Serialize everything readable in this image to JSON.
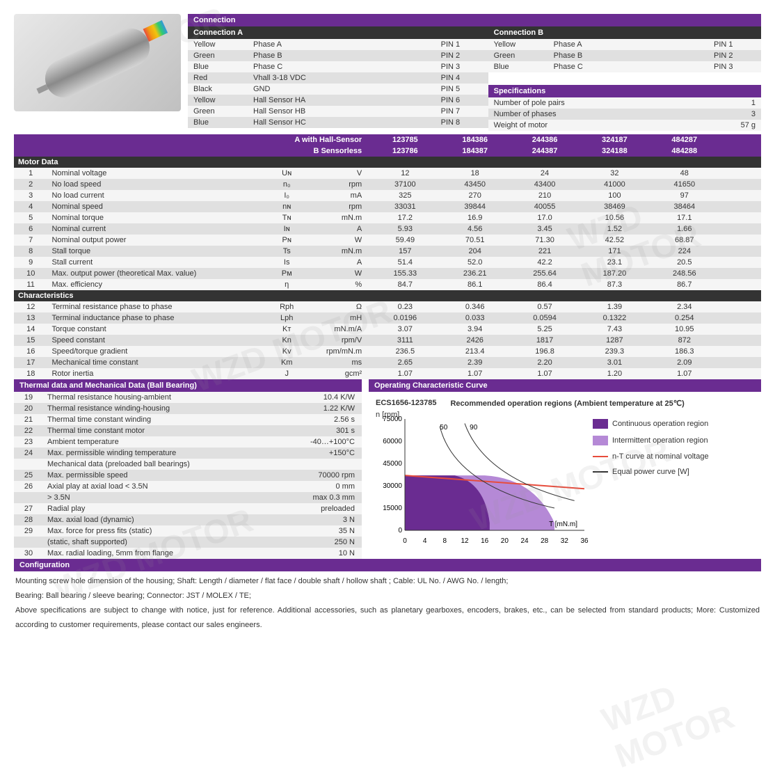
{
  "connection": {
    "title": "Connection",
    "a": {
      "title": "Connection A",
      "rows": [
        {
          "wire": "Yellow",
          "sig": "Phase A",
          "pin": "PIN 1"
        },
        {
          "wire": "Green",
          "sig": "Phase B",
          "pin": "PIN 2"
        },
        {
          "wire": "Blue",
          "sig": "Phase C",
          "pin": "PIN 3"
        },
        {
          "wire": "Red",
          "sig": "Vhall 3-18 VDC",
          "pin": "PIN 4"
        },
        {
          "wire": "Black",
          "sig": "GND",
          "pin": "PIN 5"
        },
        {
          "wire": "Yellow",
          "sig": "Hall Sensor HA",
          "pin": "PIN 6"
        },
        {
          "wire": "Green",
          "sig": "Hall Sensor HB",
          "pin": "PIN 7"
        },
        {
          "wire": "Blue",
          "sig": "Hall Sensor HC",
          "pin": "PIN 8"
        }
      ]
    },
    "b": {
      "title": "Connection B",
      "rows": [
        {
          "wire": "Yellow",
          "sig": "Phase A",
          "pin": "PIN 1"
        },
        {
          "wire": "Green",
          "sig": "Phase B",
          "pin": "PIN 2"
        },
        {
          "wire": "Blue",
          "sig": "Phase C",
          "pin": "PIN 3"
        }
      ]
    }
  },
  "specifications": {
    "title": "Specifications",
    "rows": [
      {
        "label": "Number of pole pairs",
        "val": "1"
      },
      {
        "label": "Number of phases",
        "val": "3"
      },
      {
        "label": "Weight of motor",
        "val": "57 g"
      }
    ]
  },
  "motorHeader": {
    "rowA": "A with Hall-Sensor",
    "rowB": "B Sensorless",
    "colsA": [
      "123785",
      "184386",
      "244386",
      "324187",
      "484287"
    ],
    "colsB": [
      "123786",
      "184387",
      "244387",
      "324188",
      "484288"
    ]
  },
  "motorData": {
    "title": "Motor Data",
    "rows": [
      {
        "n": "1",
        "label": "Nominal voltage",
        "sym": "Uɴ",
        "unit": "V",
        "v": [
          "12",
          "18",
          "24",
          "32",
          "48"
        ]
      },
      {
        "n": "2",
        "label": "No load speed",
        "sym": "n₀",
        "unit": "rpm",
        "v": [
          "37100",
          "43450",
          "43400",
          "41000",
          "41650"
        ]
      },
      {
        "n": "3",
        "label": "No load current",
        "sym": "I₀",
        "unit": "mA",
        "v": [
          "325",
          "270",
          "210",
          "100",
          "97"
        ]
      },
      {
        "n": "4",
        "label": "Nominal speed",
        "sym": "nɴ",
        "unit": "rpm",
        "v": [
          "33031",
          "39844",
          "40055",
          "38469",
          "38464"
        ]
      },
      {
        "n": "5",
        "label": "Nominal torque",
        "sym": "Tɴ",
        "unit": "mN.m",
        "v": [
          "17.2",
          "16.9",
          "17.0",
          "10.56",
          "17.1"
        ]
      },
      {
        "n": "6",
        "label": "Nominal current",
        "sym": "Iɴ",
        "unit": "A",
        "v": [
          "5.93",
          "4.56",
          "3.45",
          "1.52",
          "1.66"
        ]
      },
      {
        "n": "7",
        "label": "Nominal output power",
        "sym": "Pɴ",
        "unit": "W",
        "v": [
          "59.49",
          "70.51",
          "71.30",
          "42.52",
          "68.87"
        ]
      },
      {
        "n": "8",
        "label": "Stall torque",
        "sym": "Ts",
        "unit": "mN.m",
        "v": [
          "157",
          "204",
          "221",
          "171",
          "224"
        ]
      },
      {
        "n": "9",
        "label": "Stall current",
        "sym": "Is",
        "unit": "A",
        "v": [
          "51.4",
          "52.0",
          "42.2",
          "23.1",
          "20.5"
        ]
      },
      {
        "n": "10",
        "label": "Max. output power (theoretical Max. value)",
        "sym": "Pᴍ",
        "unit": "W",
        "v": [
          "155.33",
          "236.21",
          "255.64",
          "187.20",
          "248.56"
        ]
      },
      {
        "n": "11",
        "label": "Max. efficiency",
        "sym": "η",
        "unit": "%",
        "v": [
          "84.7",
          "86.1",
          "86.4",
          "87.3",
          "86.7"
        ]
      }
    ]
  },
  "characteristics": {
    "title": "Characteristics",
    "rows": [
      {
        "n": "12",
        "label": "Terminal resistance phase to phase",
        "sym": "Rph",
        "unit": "Ω",
        "v": [
          "0.23",
          "0.346",
          "0.57",
          "1.39",
          "2.34"
        ]
      },
      {
        "n": "13",
        "label": "Terminal inductance phase to phase",
        "sym": "Lph",
        "unit": "mH",
        "v": [
          "0.0196",
          "0.033",
          "0.0594",
          "0.1322",
          "0.254"
        ]
      },
      {
        "n": "14",
        "label": "Torque constant",
        "sym": "Kᴛ",
        "unit": "mN.m/A",
        "v": [
          "3.07",
          "3.94",
          "5.25",
          "7.43",
          "10.95"
        ]
      },
      {
        "n": "15",
        "label": "Speed constant",
        "sym": "Kn",
        "unit": "rpm/V",
        "v": [
          "3111",
          "2426",
          "1817",
          "1287",
          "872"
        ]
      },
      {
        "n": "16",
        "label": "Speed/torque gradient",
        "sym": "Kv",
        "unit": "rpm/mN.m",
        "v": [
          "236.5",
          "213.4",
          "196.8",
          "239.3",
          "186.3"
        ]
      },
      {
        "n": "17",
        "label": "Mechanical time constant",
        "sym": "Km",
        "unit": "ms",
        "v": [
          "2.65",
          "2.39",
          "2.20",
          "3.01",
          "2.09"
        ]
      },
      {
        "n": "18",
        "label": "Rotor inertia",
        "sym": "J",
        "unit": "gcm²",
        "v": [
          "1.07",
          "1.07",
          "1.07",
          "1.20",
          "1.07"
        ]
      }
    ]
  },
  "thermal": {
    "title": "Thermal data and Mechanical Data (Ball Bearing)",
    "rows": [
      {
        "n": "19",
        "label": "Thermal resistance housing-ambient",
        "val": "10.4 K/W"
      },
      {
        "n": "20",
        "label": "Thermal resistance winding-housing",
        "val": "1.22 K/W"
      },
      {
        "n": "21",
        "label": "Thermal time constant winding",
        "val": "2.56 s"
      },
      {
        "n": "22",
        "label": "Thermal time constant motor",
        "val": "301 s"
      },
      {
        "n": "23",
        "label": "Ambient temperature",
        "val": "-40…+100°C"
      },
      {
        "n": "24",
        "label": "Max. permissible winding temperature",
        "val": "+150°C"
      },
      {
        "n": "",
        "label": "Mechanical data (preloaded ball bearings)",
        "val": ""
      },
      {
        "n": "25",
        "label": "Max. permissible speed",
        "val": "70000 rpm"
      },
      {
        "n": "26",
        "label": "Axial play at axial load < 3.5N",
        "val": "0 mm"
      },
      {
        "n": "",
        "label": "                                      > 3.5N",
        "val": "max 0.3 mm"
      },
      {
        "n": "27",
        "label": "Radial play",
        "val": "preloaded"
      },
      {
        "n": "28",
        "label": "Max. axial load (dynamic)",
        "val": "3 N"
      },
      {
        "n": "29",
        "label": "Max. force for press fits (static)",
        "val": "35 N"
      },
      {
        "n": "",
        "label": "(static, shaft supported)",
        "val": "250 N"
      },
      {
        "n": "30",
        "label": "Max. radial loading, 5mm from flange",
        "val": "10 N"
      }
    ]
  },
  "chart": {
    "title": "Operating Characteristic Curve",
    "model": "ECS1656-123785",
    "subtitle": "Recommended operation regions (Ambient temperature at 25℃)",
    "ylabel": "n [rpm]",
    "xlabel": "T [mN.m]",
    "yticks": [
      "0",
      "15000",
      "30000",
      "45000",
      "60000",
      "75000"
    ],
    "xticks": [
      "0",
      "4",
      "8",
      "12",
      "16",
      "20",
      "24",
      "28",
      "32",
      "36"
    ],
    "powerLabels": [
      "50",
      "90"
    ],
    "colors": {
      "continuous": "#6a2c91",
      "intermittent": "#b589d6",
      "nt_line": "#e74c3c",
      "power_line": "#333333",
      "bg": "#ffffff"
    },
    "legend": [
      {
        "type": "box",
        "color": "#6a2c91",
        "label": "Continuous operation region"
      },
      {
        "type": "box",
        "color": "#b589d6",
        "label": "Intermittent operation region"
      },
      {
        "type": "line",
        "color": "#e74c3c",
        "label": "n-T curve at nominal voltage"
      },
      {
        "type": "line",
        "color": "#333333",
        "label": "Equal power curve [W]"
      }
    ]
  },
  "configuration": {
    "title": "Configuration",
    "line1": "Mounting screw hole dimension of the housing;   Shaft: Length / diameter / flat face / double shaft / hollow shaft ;   Cable: UL No. / AWG No. / length;",
    "line2": "Bearing: Ball bearing / sleeve bearing;   Connector: JST / MOLEX / TE;",
    "line3": "Above specifications are subject to change with notice, just for reference.  Additional accessories, such as planetary gearboxes, encoders, brakes, etc., can be selected from standard products; More: Customized according to customer requirements, please contact our sales engineers."
  },
  "watermark": "WZD MOTOR"
}
